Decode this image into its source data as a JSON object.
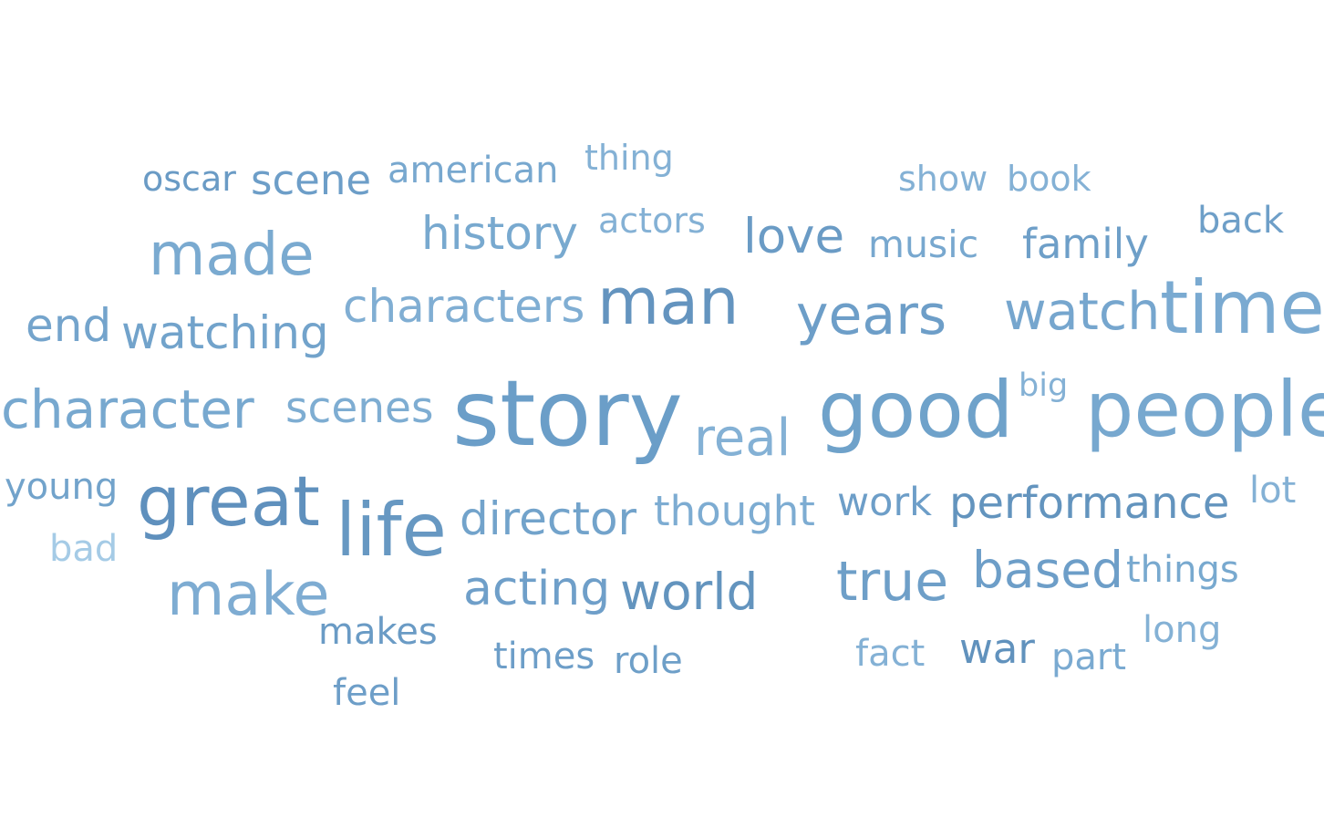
{
  "chart_data": {
    "type": "wordcloud",
    "words": [
      {
        "text": "story",
        "weight": 1.0,
        "color": "#6b9ec8"
      },
      {
        "text": "good",
        "weight": 0.86,
        "color": "#6fa2ca"
      },
      {
        "text": "people",
        "weight": 0.84,
        "color": "#77a8cf"
      },
      {
        "text": "life",
        "weight": 0.8,
        "color": "#6798c2"
      },
      {
        "text": "time",
        "weight": 0.8,
        "color": "#7aaad1"
      },
      {
        "text": "great",
        "weight": 0.76,
        "color": "#5f90bd"
      },
      {
        "text": "man",
        "weight": 0.7,
        "color": "#6494bf"
      },
      {
        "text": "make",
        "weight": 0.65,
        "color": "#7eacd2"
      },
      {
        "text": "made",
        "weight": 0.64,
        "color": "#7aaad0"
      },
      {
        "text": "years",
        "weight": 0.6,
        "color": "#6d9ec8"
      },
      {
        "text": "character",
        "weight": 0.58,
        "color": "#77a8cf"
      },
      {
        "text": "true",
        "weight": 0.6,
        "color": "#6e9fc8"
      },
      {
        "text": "watch",
        "weight": 0.57,
        "color": "#76a6ce"
      },
      {
        "text": "real",
        "weight": 0.56,
        "color": "#84b1d5"
      },
      {
        "text": "based",
        "weight": 0.55,
        "color": "#6d9ec8"
      },
      {
        "text": "world",
        "weight": 0.55,
        "color": "#6394be"
      },
      {
        "text": "love",
        "weight": 0.53,
        "color": "#6a9bc5"
      },
      {
        "text": "acting",
        "weight": 0.52,
        "color": "#6f9fc9"
      },
      {
        "text": "history",
        "weight": 0.5,
        "color": "#78a9cf"
      },
      {
        "text": "characters",
        "weight": 0.5,
        "color": "#80aed3"
      },
      {
        "text": "watching",
        "weight": 0.5,
        "color": "#72a3cb"
      },
      {
        "text": "director",
        "weight": 0.5,
        "color": "#72a3cb"
      },
      {
        "text": "end",
        "weight": 0.5,
        "color": "#74a4cc"
      },
      {
        "text": "performance",
        "weight": 0.48,
        "color": "#6394be"
      },
      {
        "text": "scenes",
        "weight": 0.47,
        "color": "#7eadd2"
      },
      {
        "text": "thought",
        "weight": 0.45,
        "color": "#7dacd2"
      },
      {
        "text": "scene",
        "weight": 0.45,
        "color": "#6d9ec8"
      },
      {
        "text": "family",
        "weight": 0.45,
        "color": "#6e9fc8"
      },
      {
        "text": "war",
        "weight": 0.45,
        "color": "#6192bd"
      },
      {
        "text": "work",
        "weight": 0.43,
        "color": "#6d9ec8"
      },
      {
        "text": "music",
        "weight": 0.41,
        "color": "#78a8cf"
      },
      {
        "text": "young",
        "weight": 0.4,
        "color": "#72a3cb"
      },
      {
        "text": "back",
        "weight": 0.4,
        "color": "#6e9fc8"
      },
      {
        "text": "makes",
        "weight": 0.4,
        "color": "#6a9bc5"
      },
      {
        "text": "times",
        "weight": 0.4,
        "color": "#6d9ec8"
      },
      {
        "text": "role",
        "weight": 0.4,
        "color": "#6e9fc8"
      },
      {
        "text": "part",
        "weight": 0.4,
        "color": "#7aaad1"
      },
      {
        "text": "feel",
        "weight": 0.4,
        "color": "#6d9ec8"
      },
      {
        "text": "bad",
        "weight": 0.4,
        "color": "#a5cbe6"
      },
      {
        "text": "american",
        "weight": 0.4,
        "color": "#78a8cf"
      },
      {
        "text": "fact",
        "weight": 0.4,
        "color": "#84b1d5"
      },
      {
        "text": "things",
        "weight": 0.4,
        "color": "#78a9cf"
      },
      {
        "text": "lot",
        "weight": 0.4,
        "color": "#84b1d5"
      },
      {
        "text": "long",
        "weight": 0.4,
        "color": "#84b1d5"
      },
      {
        "text": "actors",
        "weight": 0.38,
        "color": "#84b1d5"
      },
      {
        "text": "oscar",
        "weight": 0.38,
        "color": "#6a9bc5"
      },
      {
        "text": "thing",
        "weight": 0.38,
        "color": "#84b1d5"
      },
      {
        "text": "show",
        "weight": 0.38,
        "color": "#84b1d5"
      },
      {
        "text": "book",
        "weight": 0.38,
        "color": "#84b1d5"
      },
      {
        "text": "big",
        "weight": 0.35,
        "color": "#84b1d5"
      }
    ]
  }
}
